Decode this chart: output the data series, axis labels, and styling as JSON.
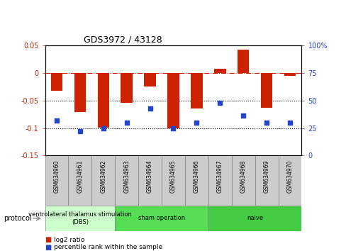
{
  "title": "GDS3972 / 43128",
  "samples": [
    "GSM634960",
    "GSM634961",
    "GSM634962",
    "GSM634963",
    "GSM634964",
    "GSM634965",
    "GSM634966",
    "GSM634967",
    "GSM634968",
    "GSM634969",
    "GSM634970"
  ],
  "log2_ratio": [
    -0.033,
    -0.071,
    -0.099,
    -0.055,
    -0.025,
    -0.101,
    -0.065,
    0.007,
    0.042,
    -0.063,
    -0.005
  ],
  "percentile_rank": [
    32,
    22,
    25,
    30,
    43,
    25,
    30,
    48,
    36,
    30,
    30
  ],
  "ylim_left": [
    -0.15,
    0.05
  ],
  "ylim_right": [
    0,
    100
  ],
  "yticks_left": [
    0.05,
    0.0,
    -0.05,
    -0.1,
    -0.15
  ],
  "yticks_right": [
    100,
    75,
    50,
    25,
    0
  ],
  "groups": [
    {
      "label": "ventrolateral thalamus stimulation\n(DBS)",
      "start": 0,
      "end": 3,
      "color": "#ccffcc"
    },
    {
      "label": "sham operation",
      "start": 3,
      "end": 7,
      "color": "#55dd55"
    },
    {
      "label": "naive",
      "start": 7,
      "end": 11,
      "color": "#44cc44"
    }
  ],
  "bar_color": "#cc2200",
  "dot_color": "#2244cc",
  "hline_color": "#cc2200",
  "dotted_color": "#000000",
  "bar_width": 0.5,
  "protocol_label": "protocol",
  "label_bg": "#cccccc",
  "figure_bg": "#ffffff"
}
